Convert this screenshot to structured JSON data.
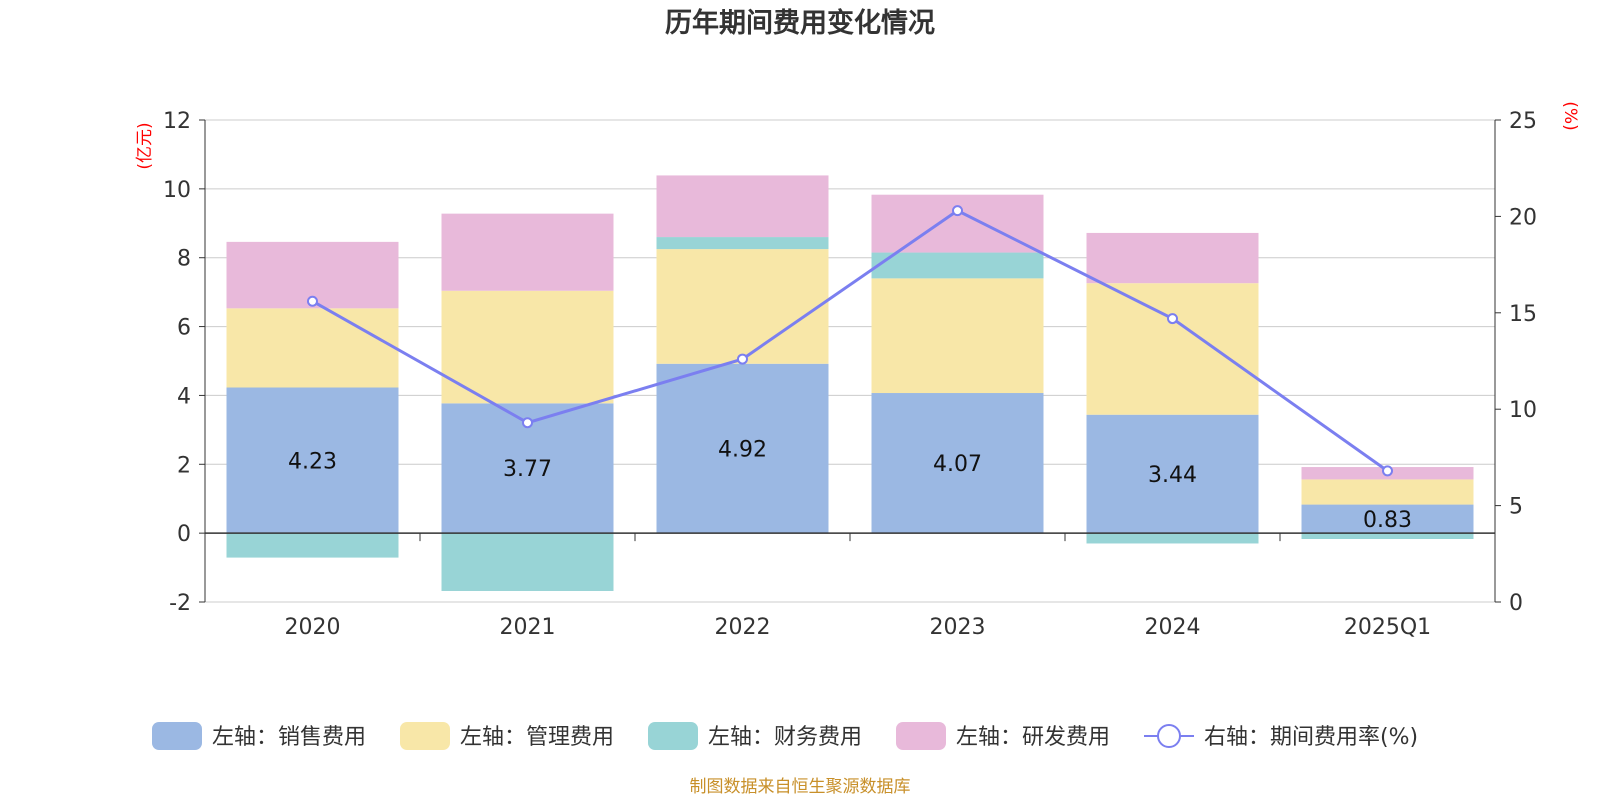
{
  "chart_data": {
    "type": "bar",
    "title": "历年期间费用变化情况",
    "categories": [
      "2020",
      "2021",
      "2022",
      "2023",
      "2024",
      "2025Q1"
    ],
    "y_left": {
      "unit": "(亿元)",
      "range": [
        -2,
        12
      ],
      "ticks": [
        -2,
        0,
        2,
        4,
        6,
        8,
        10,
        12
      ]
    },
    "y_right": {
      "unit": "(%)",
      "range": [
        0,
        25
      ],
      "ticks": [
        0,
        5,
        10,
        15,
        20,
        25
      ]
    },
    "grid": true,
    "stacked": true,
    "series": [
      {
        "name": "左轴：销售费用",
        "type": "bar",
        "axis": "left",
        "color": "#9bb8e3",
        "values": [
          4.23,
          3.77,
          4.92,
          4.07,
          3.44,
          0.83
        ],
        "data_labels": [
          "4.23",
          "3.77",
          "4.92",
          "4.07",
          "3.44",
          "0.83"
        ]
      },
      {
        "name": "左轴：管理费用",
        "type": "bar",
        "axis": "left",
        "color": "#f8e7a8",
        "values": [
          2.3,
          3.27,
          3.33,
          3.33,
          3.82,
          0.73
        ]
      },
      {
        "name": "左轴：财务费用",
        "type": "bar",
        "axis": "left",
        "color": "#98d4d6",
        "values": [
          -0.71,
          -1.68,
          0.35,
          0.75,
          -0.3,
          -0.17
        ]
      },
      {
        "name": "左轴：研发费用",
        "type": "bar",
        "axis": "left",
        "color": "#e8b9da",
        "values": [
          1.93,
          2.24,
          1.79,
          1.68,
          1.46,
          0.36
        ]
      },
      {
        "name": "右轴：期间费用率(%)",
        "type": "line",
        "axis": "right",
        "color": "#7b7ff0",
        "values": [
          15.6,
          9.3,
          12.6,
          20.3,
          14.7,
          6.8
        ]
      }
    ],
    "legend_position": "bottom",
    "source": "制图数据来自恒生聚源数据库"
  }
}
